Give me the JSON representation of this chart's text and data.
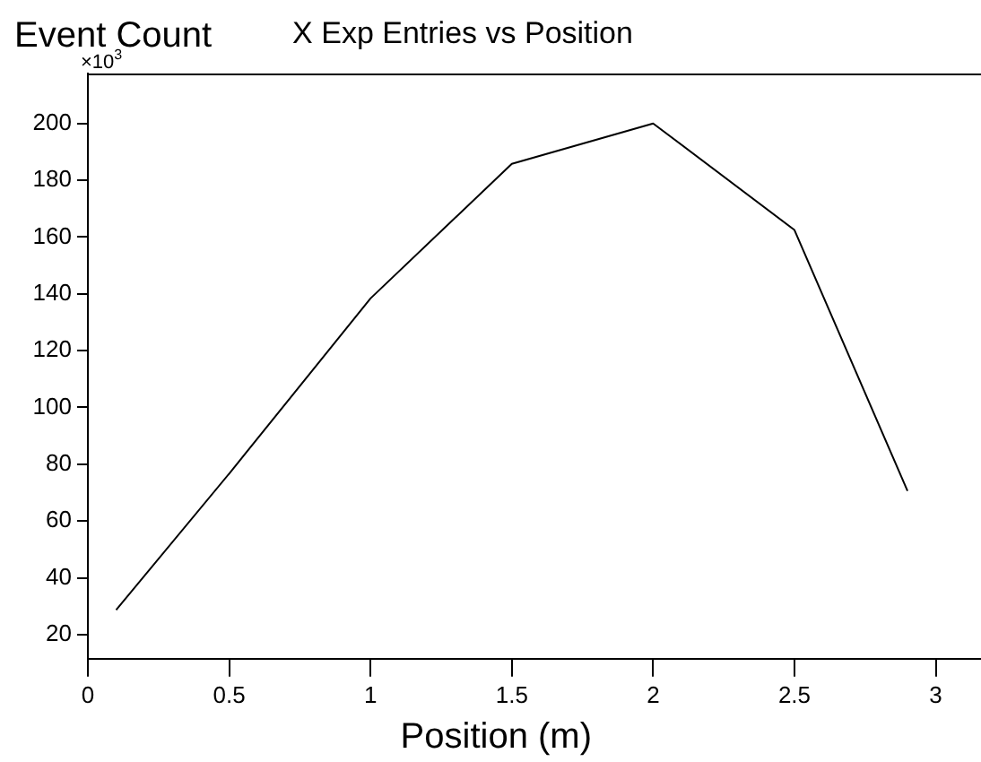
{
  "chart_data": {
    "type": "line",
    "title": "X Exp Entries vs Position",
    "xlabel": "Position (m)",
    "ylabel": "Event Count",
    "annotations": [
      "×10$^{3}$"
    ],
    "x": [
      0.1,
      0.5,
      1,
      1.5,
      2,
      2.5,
      2.9
    ],
    "series": [
      {
        "color": "#000000",
        "values": [
          28.7,
          76.7,
          138.4,
          185.8,
          200,
          162.5,
          70.6
        ]
      }
    ],
    "xlim": [
      0,
      3.16
    ],
    "xticks": [
      0,
      0.5,
      1,
      1.5,
      2,
      2.5,
      3
    ],
    "ylim": [
      11.5,
      217.6
    ],
    "yticks": [
      20,
      40,
      60,
      80,
      100,
      120,
      140,
      160,
      180,
      200
    ],
    "grid": false,
    "legend": false,
    "marker": "none",
    "line_style": "solid"
  }
}
